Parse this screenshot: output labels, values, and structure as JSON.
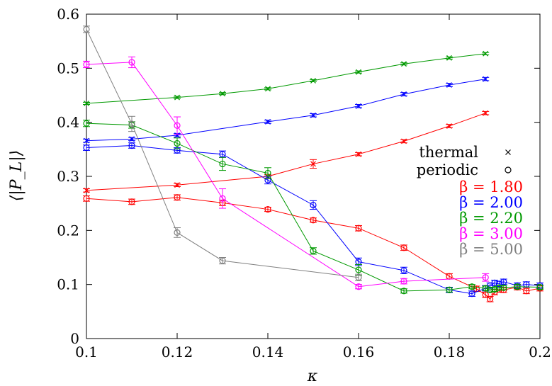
{
  "chart_data": {
    "type": "line",
    "xlabel": "κ",
    "ylabel": "⟨|P_L|⟩",
    "xlim": [
      0.1,
      0.2
    ],
    "ylim": [
      0,
      0.6
    ],
    "x_ticks": [
      "0.1",
      "0.12",
      "0.14",
      "0.16",
      "0.18",
      "0.2"
    ],
    "y_ticks": [
      "0",
      "0.1",
      "0.2",
      "0.3",
      "0.4",
      "0.5",
      "0.6"
    ],
    "grid": false,
    "legend_placement": "right",
    "marker_legend": [
      {
        "label": "thermal",
        "marker": "cross"
      },
      {
        "label": "periodic",
        "marker": "circle"
      }
    ],
    "series": [
      {
        "name": "β = 1.80",
        "color": "#ff0000",
        "thermal": {
          "x": [
            0.1,
            0.12,
            0.14,
            0.15,
            0.16,
            0.17,
            0.18,
            0.188
          ],
          "y": [
            0.274,
            0.284,
            0.3,
            0.323,
            0.341,
            0.365,
            0.393,
            0.417
          ],
          "err": [
            0.003,
            0.003,
            0.003,
            0.008,
            0.003,
            0.003,
            0.003,
            0.003
          ]
        },
        "periodic": {
          "x": [
            0.1,
            0.11,
            0.12,
            0.13,
            0.14,
            0.15,
            0.16,
            0.17,
            0.18,
            0.186,
            0.188,
            0.189,
            0.19,
            0.191,
            0.192,
            0.195,
            0.197,
            0.2
          ],
          "y": [
            0.259,
            0.253,
            0.261,
            0.251,
            0.239,
            0.219,
            0.204,
            0.168,
            0.115,
            0.092,
            0.081,
            0.073,
            0.086,
            0.091,
            0.09,
            0.095,
            0.088,
            0.093
          ],
          "err": [
            0.005,
            0.005,
            0.005,
            0.005,
            0.004,
            0.004,
            0.005,
            0.005,
            0.005,
            0.005,
            0.005,
            0.005,
            0.005,
            0.005,
            0.005,
            0.005,
            0.005,
            0.005
          ]
        }
      },
      {
        "name": "β = 2.00",
        "color": "#0000ff",
        "thermal": {
          "x": [
            0.1,
            0.11,
            0.12,
            0.14,
            0.15,
            0.16,
            0.17,
            0.18,
            0.188
          ],
          "y": [
            0.366,
            0.369,
            0.376,
            0.401,
            0.413,
            0.43,
            0.452,
            0.469,
            0.48
          ],
          "err": [
            0.003,
            0.003,
            0.003,
            0.003,
            0.003,
            0.003,
            0.003,
            0.003,
            0.003
          ]
        },
        "periodic": {
          "x": [
            0.1,
            0.11,
            0.12,
            0.13,
            0.14,
            0.15,
            0.16,
            0.17,
            0.18,
            0.185,
            0.188,
            0.189,
            0.19,
            0.191,
            0.192,
            0.195,
            0.197,
            0.2
          ],
          "y": [
            0.353,
            0.357,
            0.348,
            0.341,
            0.293,
            0.247,
            0.142,
            0.126,
            0.09,
            0.083,
            0.093,
            0.098,
            0.103,
            0.101,
            0.105,
            0.098,
            0.1,
            0.098
          ],
          "err": [
            0.005,
            0.005,
            0.005,
            0.006,
            0.007,
            0.008,
            0.007,
            0.006,
            0.005,
            0.005,
            0.005,
            0.005,
            0.005,
            0.005,
            0.005,
            0.005,
            0.005,
            0.005
          ]
        }
      },
      {
        "name": "β = 2.20",
        "color": "#009900",
        "thermal": {
          "x": [
            0.1,
            0.12,
            0.13,
            0.14,
            0.15,
            0.16,
            0.17,
            0.18,
            0.188
          ],
          "y": [
            0.435,
            0.446,
            0.453,
            0.462,
            0.477,
            0.493,
            0.508,
            0.519,
            0.527
          ],
          "err": [
            0.002,
            0.002,
            0.002,
            0.002,
            0.002,
            0.002,
            0.002,
            0.002,
            0.002
          ]
        },
        "periodic": {
          "x": [
            0.1,
            0.11,
            0.12,
            0.13,
            0.14,
            0.15,
            0.16,
            0.17,
            0.18,
            0.185,
            0.188,
            0.189,
            0.19,
            0.191,
            0.192,
            0.195,
            0.2
          ],
          "y": [
            0.398,
            0.395,
            0.361,
            0.323,
            0.306,
            0.162,
            0.127,
            0.088,
            0.09,
            0.096,
            0.093,
            0.09,
            0.091,
            0.094,
            0.094,
            0.096,
            0.095
          ],
          "err": [
            0.006,
            0.006,
            0.01,
            0.012,
            0.01,
            0.006,
            0.01,
            0.004,
            0.004,
            0.004,
            0.004,
            0.004,
            0.004,
            0.004,
            0.004,
            0.004,
            0.004
          ]
        }
      },
      {
        "name": "β = 3.00",
        "color": "#ff00ff",
        "thermal": {
          "x": [],
          "y": [],
          "err": []
        },
        "periodic": {
          "x": [
            0.1,
            0.11,
            0.12,
            0.13,
            0.16,
            0.17,
            0.188
          ],
          "y": [
            0.507,
            0.511,
            0.394,
            0.259,
            0.096,
            0.106,
            0.113
          ],
          "err": [
            0.006,
            0.01,
            0.016,
            0.018,
            0.004,
            0.005,
            0.007
          ]
        }
      },
      {
        "name": "β = 5.00",
        "color": "#808080",
        "thermal": {
          "x": [],
          "y": [],
          "err": []
        },
        "periodic": {
          "x": [
            0.1,
            0.11,
            0.12,
            0.13,
            0.16
          ],
          "y": [
            0.572,
            0.397,
            0.196,
            0.144,
            0.113
          ],
          "err": [
            0.006,
            0.014,
            0.009,
            0.006,
            0.006
          ]
        }
      }
    ]
  }
}
